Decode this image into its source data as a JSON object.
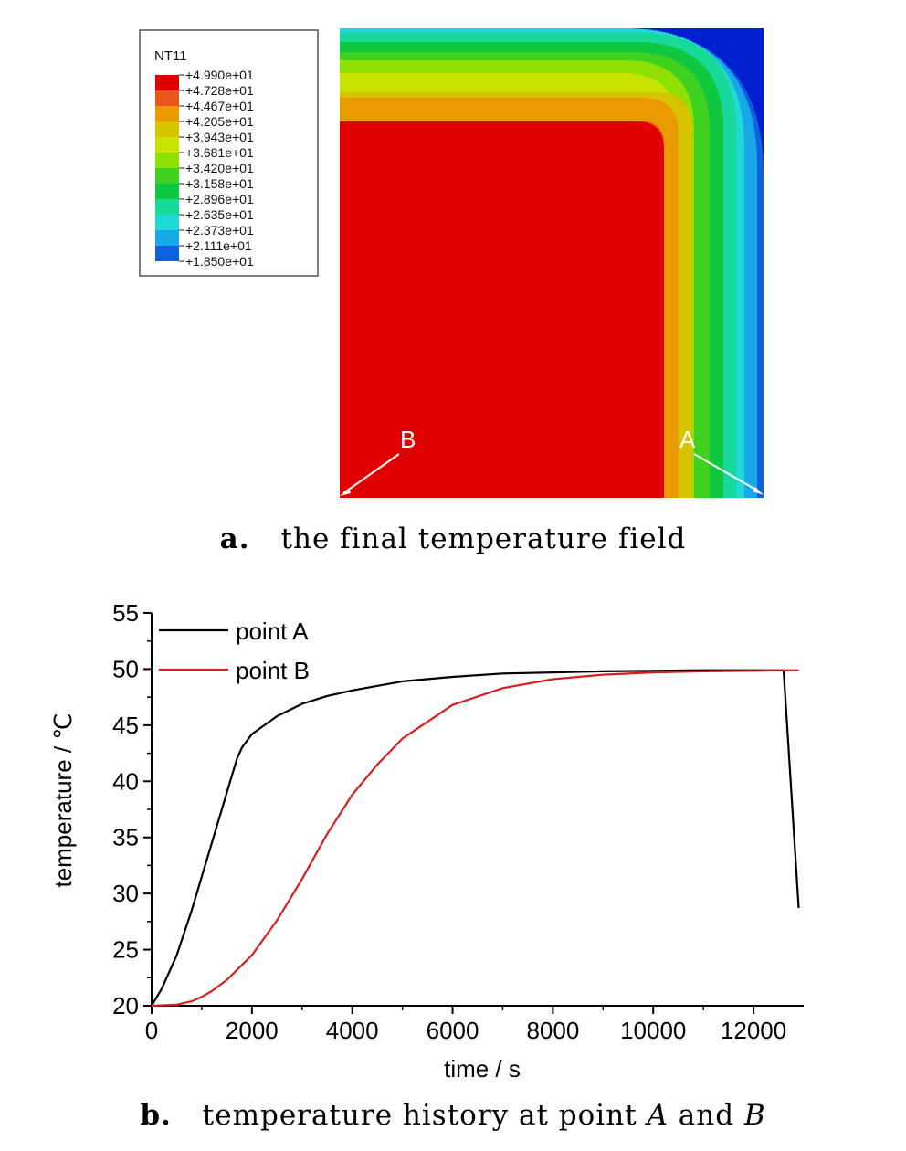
{
  "figure_a": {
    "caption_label": "a.",
    "caption_text": "the final temperature field",
    "legend": {
      "title": "NT11",
      "levels": [
        "+4.990e+01",
        "+4.728e+01",
        "+4.467e+01",
        "+4.205e+01",
        "+3.943e+01",
        "+3.681e+01",
        "+3.420e+01",
        "+3.158e+01",
        "+2.896e+01",
        "+2.635e+01",
        "+2.373e+01",
        "+2.111e+01",
        "+1.850e+01"
      ],
      "colors": [
        "#e00000",
        "#e8561a",
        "#e89a00",
        "#d6c400",
        "#c6e400",
        "#8ee000",
        "#40d020",
        "#10c840",
        "#18d89a",
        "#20d8d8",
        "#18a8e8",
        "#1060e0",
        "#0020d0"
      ]
    },
    "points": [
      {
        "label": "B",
        "location": "bottom-left corner (center of body)"
      },
      {
        "label": "A",
        "location": "bottom-right corner (surface)"
      }
    ]
  },
  "figure_b": {
    "caption_label": "b.",
    "caption_text_1": "temperature history at point ",
    "caption_italic_1": "A",
    "caption_text_2": " and ",
    "caption_italic_2": "B"
  },
  "chart_data": {
    "type": "line",
    "title": "",
    "xlabel": "time / s",
    "ylabel": "temperature / ℃",
    "xlim": [
      0,
      13000
    ],
    "ylim": [
      20,
      55
    ],
    "xticks": [
      0,
      2000,
      4000,
      6000,
      8000,
      10000,
      12000
    ],
    "xtick_labels": [
      "0",
      "2000",
      "4000",
      "6000",
      "8000",
      "10000",
      "12000"
    ],
    "yticks": [
      20,
      25,
      30,
      35,
      40,
      45,
      50,
      55
    ],
    "ytick_labels": [
      "20",
      "25",
      "30",
      "35",
      "40",
      "45",
      "50",
      "55"
    ],
    "grid": false,
    "legend_position": "top-left",
    "series": [
      {
        "name": "point A",
        "color": "#000000",
        "x": [
          0,
          200,
          500,
          800,
          1100,
          1400,
          1700,
          1800,
          2000,
          2500,
          3000,
          3500,
          4000,
          5000,
          6000,
          7000,
          8000,
          9000,
          10000,
          11000,
          12000,
          12600,
          12900
        ],
        "y": [
          20,
          21.5,
          24.5,
          28.5,
          33,
          37.5,
          42,
          43,
          44.2,
          45.8,
          46.9,
          47.6,
          48.1,
          48.9,
          49.3,
          49.6,
          49.7,
          49.8,
          49.85,
          49.9,
          49.9,
          49.9,
          28.7
        ]
      },
      {
        "name": "point B",
        "color": "#d42020",
        "x": [
          0,
          500,
          800,
          1000,
          1200,
          1500,
          2000,
          2500,
          3000,
          3500,
          4000,
          4500,
          5000,
          6000,
          7000,
          8000,
          9000,
          10000,
          11000,
          12000,
          12600,
          12900
        ],
        "y": [
          20,
          20.1,
          20.4,
          20.8,
          21.3,
          22.3,
          24.5,
          27.6,
          31.3,
          35.3,
          38.8,
          41.5,
          43.8,
          46.8,
          48.3,
          49.1,
          49.5,
          49.7,
          49.8,
          49.85,
          49.9,
          49.9
        ]
      }
    ]
  }
}
